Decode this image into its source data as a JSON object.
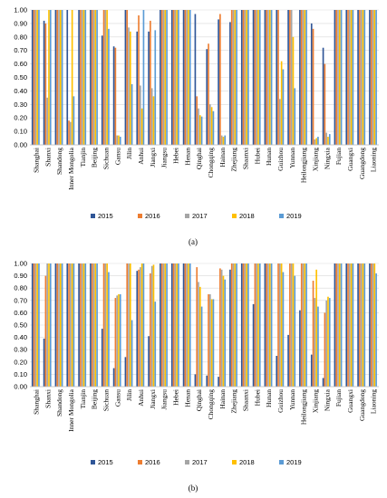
{
  "chart_data": [
    {
      "type": "bar",
      "panel_label": "(a)",
      "categories": [
        "Shanghai",
        "Shanxi",
        "Shandong",
        "Inner Mongolia",
        "Tianjin",
        "Beijing",
        "Sichuan",
        "Gansu",
        "Jilin",
        "Anhui",
        "Jiangxi",
        "Jiangsu",
        "Hebei",
        "Henan",
        "Qinghai",
        "Chongqing",
        "Hainan",
        "Zhejiang",
        "Shaanxi",
        "Hubei",
        "Hunan",
        "Guizhou",
        "Yunnan",
        "Heilongjiang",
        "Xinjiang",
        "Ningxia",
        "Fujian",
        "Guangxi",
        "Guangdong",
        "Liaoning"
      ],
      "series": [
        {
          "name": "2015",
          "color": "#2f5597",
          "values": [
            1,
            0.92,
            1,
            1,
            1,
            1,
            0.81,
            0.73,
            1,
            0.84,
            0.84,
            1,
            1,
            1,
            0.97,
            0.71,
            0.93,
            0.91,
            1,
            1,
            1,
            1,
            1,
            1,
            0.9,
            0.72,
            1,
            1,
            1,
            1
          ]
        },
        {
          "name": "2016",
          "color": "#ed7d31",
          "values": [
            1,
            0.9,
            1,
            0.18,
            1,
            1,
            1,
            0.72,
            1,
            0.96,
            0.92,
            1,
            1,
            1,
            0.36,
            0.75,
            0.97,
            1,
            1,
            1,
            1,
            1,
            1,
            1,
            0.86,
            0.6,
            1,
            1,
            1,
            1
          ]
        },
        {
          "name": "2017",
          "color": "#a5a5a5",
          "values": [
            1,
            0.35,
            1,
            0.17,
            1,
            1,
            1,
            0.07,
            0.87,
            0.44,
            0.42,
            1,
            1,
            1,
            0.27,
            0.3,
            0.07,
            1,
            1,
            1,
            1,
            0.34,
            1,
            1,
            0.04,
            0.09,
            1,
            1,
            1,
            1
          ]
        },
        {
          "name": "2018",
          "color": "#ffc000",
          "values": [
            1,
            1,
            1,
            1,
            1,
            1,
            1,
            0.07,
            0.84,
            0.27,
            0.36,
            1,
            1,
            1,
            0.22,
            0.28,
            0.06,
            1,
            1,
            1,
            1,
            0.62,
            0.8,
            1,
            0.05,
            0.06,
            1,
            1,
            1,
            1
          ]
        },
        {
          "name": "2019",
          "color": "#5b9bd5",
          "values": [
            1,
            1,
            1,
            0.36,
            1,
            1,
            0.86,
            0.06,
            0.45,
            1,
            0.85,
            1,
            1,
            1,
            0.21,
            0.25,
            0.07,
            1,
            1,
            1,
            1,
            0.56,
            0.42,
            1,
            0.06,
            0.08,
            1,
            1,
            1,
            1
          ]
        }
      ],
      "ylim": [
        0,
        1
      ],
      "yticks": [
        "0.00",
        "0.10",
        "0.20",
        "0.30",
        "0.40",
        "0.50",
        "0.60",
        "0.70",
        "0.80",
        "0.90",
        "1.00"
      ],
      "grid": true,
      "legend_position": "bottom"
    },
    {
      "type": "bar",
      "panel_label": "(b)",
      "categories": [
        "Shanghai",
        "Shanxi",
        "Shandong",
        "Inner Mongolia",
        "Tianjin",
        "Beijing",
        "Sichuan",
        "Gansu",
        "Jilin",
        "Anhui",
        "Jiangxi",
        "Jiangsu",
        "Hebei",
        "Henan",
        "Qinghai",
        "Chongqing",
        "Hainan",
        "Zhejiang",
        "Shaanxi",
        "Hubei",
        "Hunan",
        "Guizhou",
        "Yunnan",
        "Heilongjiang",
        "Xinjiang",
        "Ningxia",
        "Fujian",
        "Guangxi",
        "Guangdong",
        "Liaoning"
      ],
      "series": [
        {
          "name": "2015",
          "color": "#2f5597",
          "values": [
            1,
            0.39,
            1,
            1,
            1,
            1,
            0.47,
            0.15,
            0.24,
            0.94,
            0.41,
            1,
            1,
            1,
            0.1,
            0.09,
            0.08,
            0.95,
            1,
            0.67,
            1,
            0.25,
            0.42,
            0.62,
            0.26,
            0.07,
            1,
            1,
            1,
            1
          ]
        },
        {
          "name": "2016",
          "color": "#ed7d31",
          "values": [
            1,
            0.9,
            1,
            1,
            1,
            1,
            1,
            0.72,
            1,
            0.95,
            0.92,
            1,
            1,
            1,
            0.97,
            0.75,
            0.96,
            1,
            1,
            1,
            1,
            1,
            1,
            1,
            0.86,
            0.6,
            1,
            1,
            1,
            1
          ]
        },
        {
          "name": "2017",
          "color": "#a5a5a5",
          "values": [
            1,
            1,
            1,
            1,
            1,
            1,
            1,
            0.74,
            1,
            0.97,
            0.98,
            1,
            1,
            1,
            0.85,
            0.75,
            0.95,
            1,
            1,
            1,
            1,
            1,
            1,
            1,
            0.72,
            0.7,
            1,
            1,
            1,
            1
          ]
        },
        {
          "name": "2018",
          "color": "#ffc000",
          "values": [
            1,
            1,
            1,
            1,
            1,
            1,
            1,
            0.75,
            1,
            1,
            0.99,
            1,
            1,
            1,
            0.81,
            0.71,
            0.9,
            1,
            1,
            1,
            1,
            1,
            1,
            1,
            0.95,
            0.73,
            1,
            1,
            1,
            1
          ]
        },
        {
          "name": "2019",
          "color": "#5b9bd5",
          "values": [
            1,
            1,
            1,
            1,
            1,
            1,
            0.93,
            0.75,
            0.54,
            1,
            0.69,
            1,
            1,
            1,
            0.65,
            0.71,
            0.87,
            1,
            1,
            1,
            1,
            0.93,
            0.9,
            1,
            0.65,
            0.72,
            1,
            1,
            1,
            0.92
          ]
        }
      ],
      "ylim": [
        0,
        1
      ],
      "yticks": [
        "0.00",
        "0.10",
        "0.20",
        "0.30",
        "0.40",
        "0.50",
        "0.60",
        "0.70",
        "0.80",
        "0.90",
        "1.00"
      ],
      "grid": true,
      "legend_position": "bottom"
    }
  ]
}
